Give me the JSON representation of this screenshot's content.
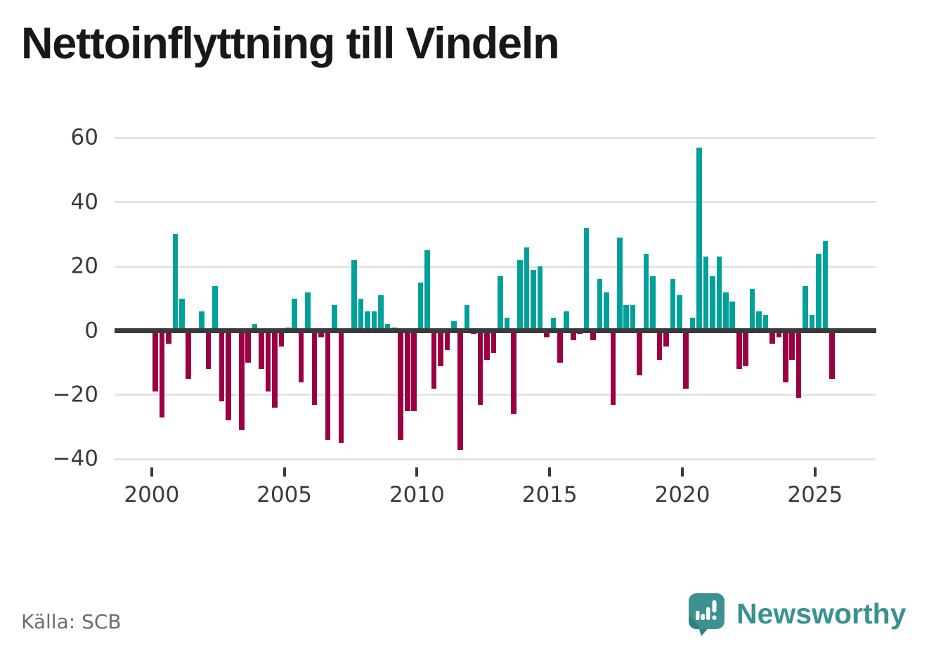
{
  "title": "Nettoinflyttning till Vindeln",
  "source": "Källa: SCB",
  "logo": {
    "text": "Newsworthy"
  },
  "chart_data": {
    "type": "bar",
    "title": "Nettoinflyttning till Vindeln",
    "frequency": "quarterly",
    "start": "2000-Q1",
    "end": "2025-Q3",
    "values": [
      -19,
      -27,
      -4,
      30,
      10,
      -15,
      0,
      6,
      -12,
      14,
      -22,
      -28,
      0,
      -31,
      -10,
      2,
      -12,
      -19,
      -24,
      -5,
      1,
      10,
      -16,
      12,
      -23,
      -2,
      -34,
      8,
      -35,
      0,
      22,
      10,
      6,
      6,
      11,
      2,
      1,
      -34,
      -25,
      -25,
      15,
      25,
      -18,
      -11,
      -6,
      3,
      -37,
      8,
      -1,
      -23,
      -9,
      -7,
      17,
      4,
      -26,
      22,
      26,
      19,
      20,
      -2,
      4,
      -10,
      6,
      -3,
      -1,
      32,
      -3,
      16,
      12,
      -23,
      29,
      8,
      8,
      -14,
      24,
      17,
      -9,
      -5,
      16,
      11,
      -18,
      4,
      57,
      23,
      17,
      23,
      12,
      9,
      -12,
      -11,
      13,
      6,
      5,
      -4,
      -2,
      -16,
      -9,
      -21,
      14,
      5,
      24,
      28,
      -15
    ],
    "y_axis": {
      "ticks": [
        {
          "value": 60,
          "label": "60"
        },
        {
          "value": 40,
          "label": "40"
        },
        {
          "value": 20,
          "label": "20"
        },
        {
          "value": 0,
          "label": "0"
        },
        {
          "value": -20,
          "label": "−20"
        },
        {
          "value": -40,
          "label": "−40"
        }
      ],
      "range": [
        -44,
        62
      ]
    },
    "x_axis": {
      "ticks": [
        {
          "year": 2000,
          "label": "2000"
        },
        {
          "year": 2005,
          "label": "2005"
        },
        {
          "year": 2010,
          "label": "2010"
        },
        {
          "year": 2015,
          "label": "2015"
        },
        {
          "year": 2020,
          "label": "2020"
        },
        {
          "year": 2025,
          "label": "2025"
        }
      ]
    },
    "colors": {
      "positive": "#00a19a",
      "negative": "#9b0142"
    },
    "grid": true,
    "legend_position": "none"
  }
}
